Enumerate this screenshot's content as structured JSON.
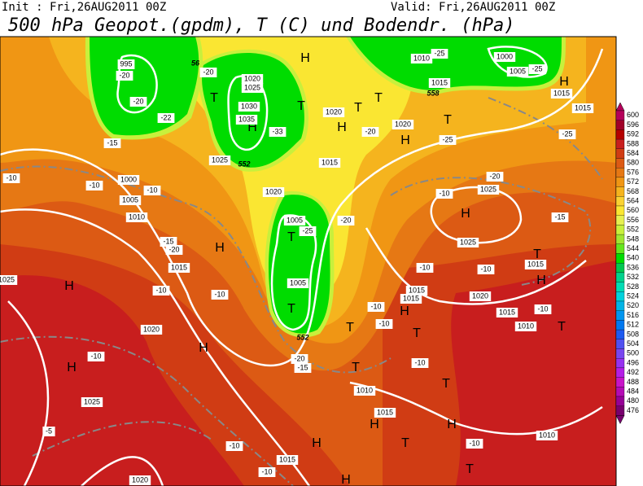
{
  "header": {
    "init": "Init : Fri,26AUG2011 00Z",
    "valid": "Valid: Fri,26AUG2011 00Z",
    "title": "500 hPa Geopot.(gpdm), T (C) und Bodendr. (hPa)"
  },
  "map": {
    "highs_lows": [
      "H",
      "H",
      "T",
      "T",
      "T",
      "T",
      "H",
      "T",
      "H",
      "H",
      "H",
      "T",
      "T",
      "H",
      "T",
      "H",
      "H",
      "H",
      "T",
      "T",
      "T",
      "H",
      "H",
      "T",
      "T",
      "H",
      "H",
      "H",
      "T",
      "T",
      "H"
    ],
    "isobar_labels": [
      "995",
      "1000",
      "1005",
      "1010",
      "1015",
      "1020",
      "1025",
      "1020",
      "1025",
      "1030",
      "1035",
      "1025",
      "1020",
      "1005",
      "1005",
      "1015",
      "1020",
      "1020",
      "1015",
      "1010",
      "1000",
      "1005",
      "1015",
      "1015",
      "1025",
      "1025",
      "1015",
      "1020",
      "1015",
      "1010",
      "1015",
      "1015",
      "1010",
      "1015",
      "1010",
      "1015",
      "1020",
      "1025"
    ],
    "isotherm_labels": [
      "-20",
      "-20",
      "-22",
      "-20",
      "-15",
      "-10",
      "-10",
      "-15",
      "-20",
      "-10",
      "-10",
      "-25",
      "-20",
      "-20",
      "-25",
      "-25",
      "-20",
      "-10",
      "-15",
      "-10",
      "-10",
      "-10",
      "-10",
      "-10",
      "-10",
      "-10",
      "-20",
      "-15",
      "-5",
      "-10",
      "-10",
      "-10",
      "-25",
      "-25",
      "-33",
      "-10"
    ],
    "height_labels": [
      "56",
      "558",
      "552",
      "552"
    ]
  },
  "colorbar": {
    "levels": [
      600,
      596,
      592,
      588,
      584,
      580,
      576,
      572,
      568,
      564,
      560,
      556,
      552,
      548,
      544,
      540,
      536,
      532,
      528,
      524,
      520,
      516,
      512,
      508,
      504,
      500,
      496,
      492,
      488,
      484,
      480,
      476
    ],
    "colors": [
      "#b4005a",
      "#a00028",
      "#b40000",
      "#c81e1e",
      "#d03c14",
      "#dc5a14",
      "#e67814",
      "#f09614",
      "#f5b41e",
      "#fad232",
      "#fae632",
      "#e6f050",
      "#c8f03c",
      "#a0e632",
      "#64e61e",
      "#00dc00",
      "#00c850",
      "#00d28c",
      "#00dcb4",
      "#00d2dc",
      "#00b4e6",
      "#0096f0",
      "#0078f0",
      "#1e5af0",
      "#5050f0",
      "#7846f0",
      "#9632f0",
      "#b41ee6",
      "#c814c8",
      "#b40ab4",
      "#960096",
      "#78006e"
    ]
  }
}
